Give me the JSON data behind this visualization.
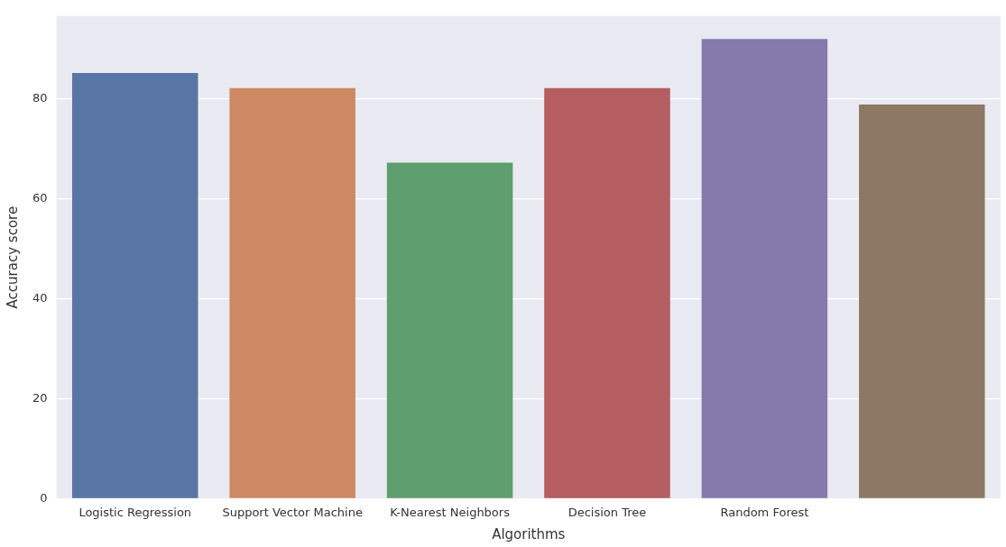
{
  "chart_data": {
    "type": "bar",
    "xlabel": "Algorithms",
    "ylabel": "Accuracy score",
    "categories": [
      "Logistic Regression",
      "Support Vector Machine",
      "K-Nearest Neighbors",
      "Decision Tree",
      "Random Forest",
      null
    ],
    "values": [
      85.1,
      82.1,
      67.2,
      82.1,
      91.9,
      78.8
    ],
    "colors": [
      "#5975a4",
      "#cc8963",
      "#5f9e6e",
      "#b55d60",
      "#857aab",
      "#8d7866"
    ],
    "ylim": [
      0,
      96.5
    ],
    "yticks": [
      0,
      20,
      40,
      60,
      80
    ],
    "grid": "y"
  }
}
